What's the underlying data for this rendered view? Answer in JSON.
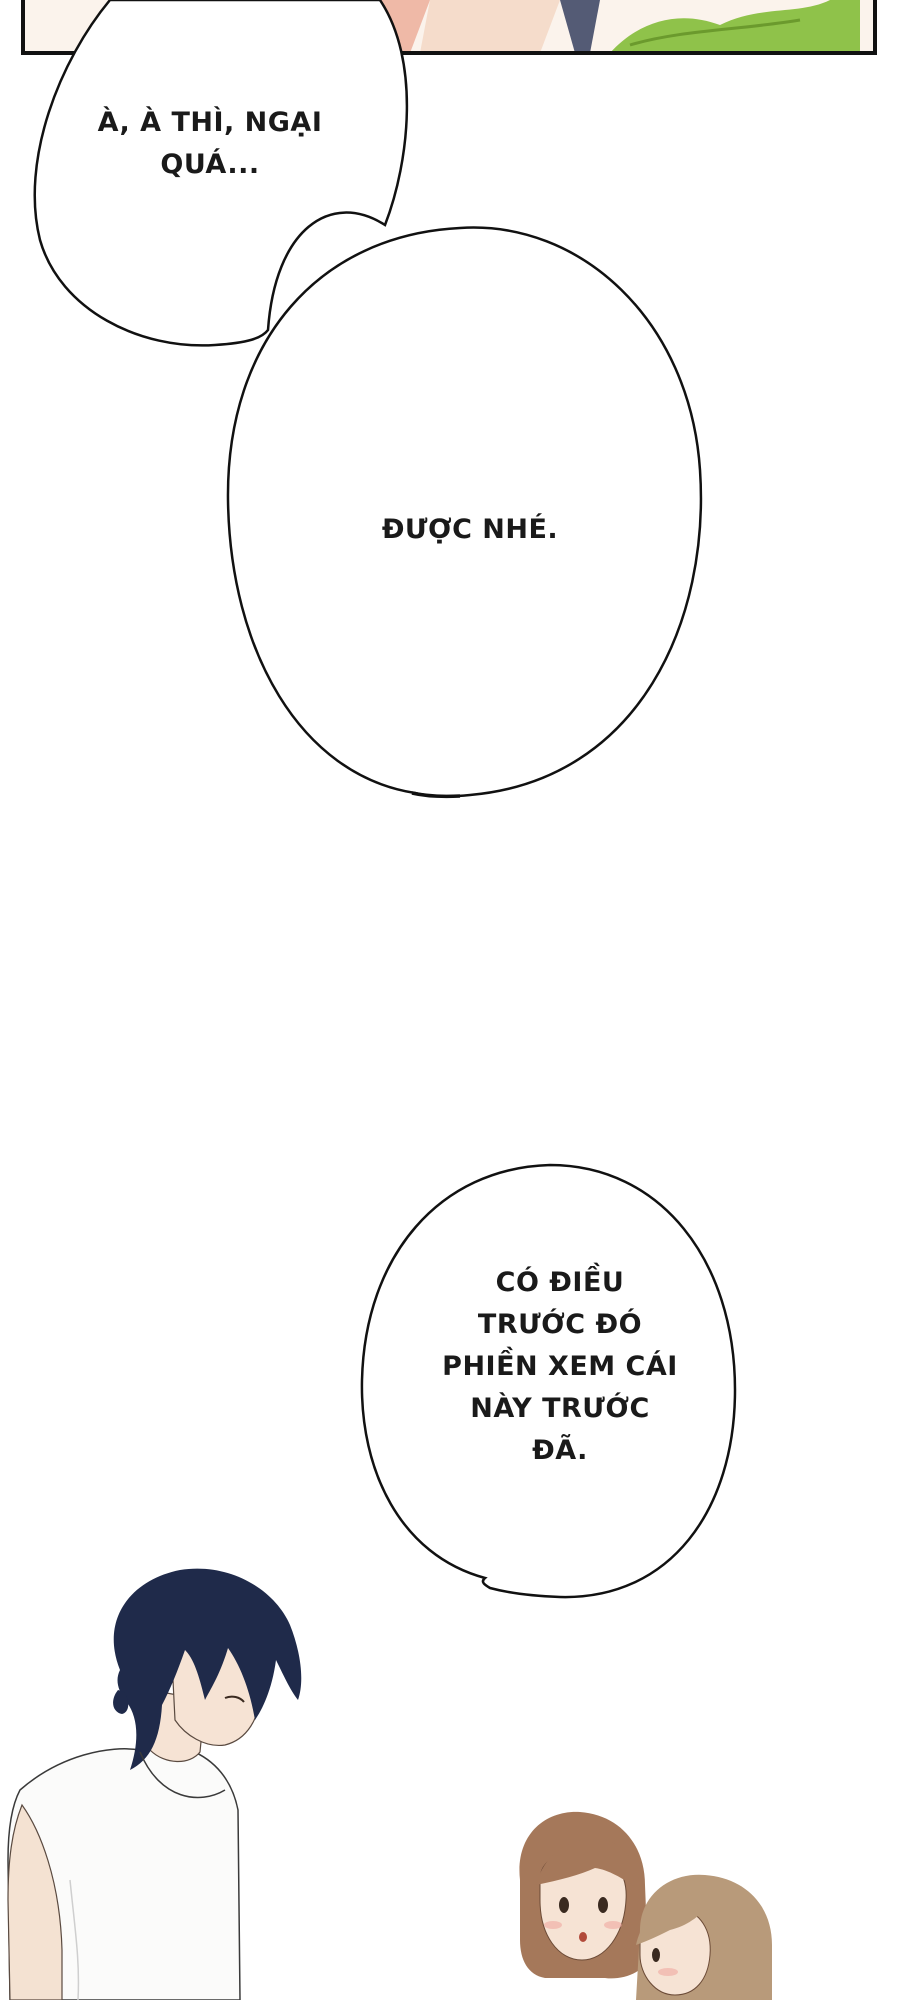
{
  "bubbles": [
    {
      "lines": [
        "À, À THÌ, NGẠI",
        "QUÁ..."
      ]
    },
    {
      "lines": [
        "ĐƯỢC NHÉ."
      ]
    },
    {
      "lines": [
        "CÓ ĐIỀU",
        "TRƯỚC ĐÓ",
        "PHIỀN XEM CÁI",
        "NÀY TRƯỚC",
        "ĐÃ."
      ]
    }
  ],
  "colors": {
    "background": "#ffffff",
    "outline": "#111111",
    "hair_dark": "#1f2a4a",
    "hair_brown": "#a5785a",
    "hair_light": "#b89a7a",
    "skin": "#f6e3d4",
    "leaf_green": "#8fc24a"
  }
}
